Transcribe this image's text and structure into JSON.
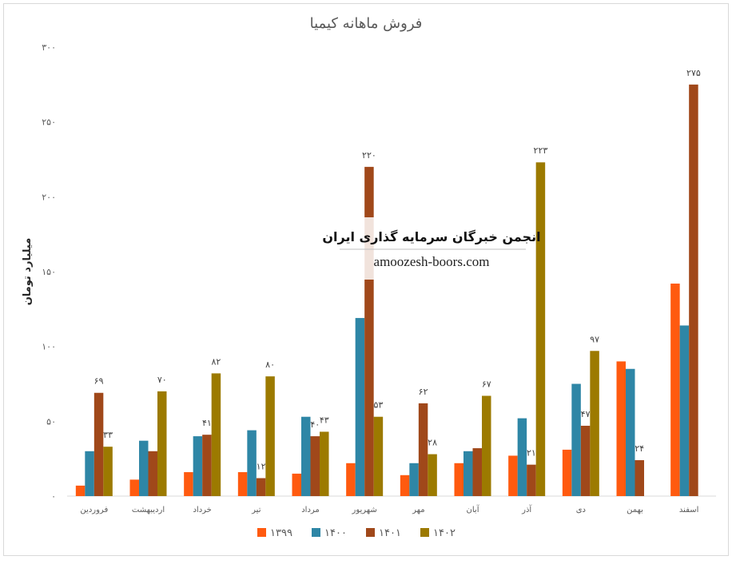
{
  "chart_data": {
    "type": "bar",
    "title": "فروش ماهانه کیمیا",
    "ylabel": "میلیارد تومان",
    "xlabel": "",
    "ylim": [
      0,
      300
    ],
    "yticks": [
      {
        "value": 0,
        "label": "۰"
      },
      {
        "value": 50,
        "label": "۵۰"
      },
      {
        "value": 100,
        "label": "۱۰۰"
      },
      {
        "value": 150,
        "label": "۱۵۰"
      },
      {
        "value": 200,
        "label": "۲۰۰"
      },
      {
        "value": 250,
        "label": "۲۵۰"
      },
      {
        "value": 300,
        "label": "۳۰۰"
      }
    ],
    "grid": false,
    "legend_position": "bottom",
    "categories": [
      "فروردین",
      "اردیبهشت",
      "خرداد",
      "تیر",
      "مرداد",
      "شهریور",
      "مهر",
      "آبان",
      "آذر",
      "دی",
      "بهمن",
      "اسفند"
    ],
    "series": [
      {
        "name": "۱۳۹۹",
        "color": "#FF5A0F",
        "values": [
          7,
          11,
          16,
          16,
          15,
          22,
          14,
          22,
          27,
          31,
          90,
          142
        ],
        "labels": []
      },
      {
        "name": "۱۴۰۰",
        "color": "#2E86A6",
        "values": [
          30,
          37,
          40,
          44,
          53,
          119,
          22,
          30,
          52,
          75,
          85,
          114
        ],
        "labels": []
      },
      {
        "name": "۱۴۰۱",
        "color": "#A0481A",
        "values": [
          69,
          30,
          41,
          12,
          40,
          220,
          62,
          32,
          21,
          47,
          24,
          275
        ],
        "labels": [
          "۶۹",
          "",
          "۴۱",
          "۱۲",
          "۴۰",
          "۲۲۰",
          "۶۲",
          "",
          "۲۱",
          "۴۷",
          "۲۴",
          "۲۷۵"
        ]
      },
      {
        "name": "۱۴۰۲",
        "color": "#9C7A00",
        "values": [
          33,
          70,
          82,
          80,
          43,
          53,
          28,
          67,
          223,
          97,
          null,
          null
        ],
        "labels": [
          "۳۳",
          "۷۰",
          "۸۲",
          "۸۰",
          "۴۳",
          "۵۳",
          "۲۸",
          "۶۷",
          "۲۲۳",
          "۹۷",
          "",
          ""
        ]
      }
    ]
  },
  "watermark": {
    "title": "انجمن خبرگان سرمایه گذاری ایران",
    "url": "amoozesh-boors.com"
  }
}
